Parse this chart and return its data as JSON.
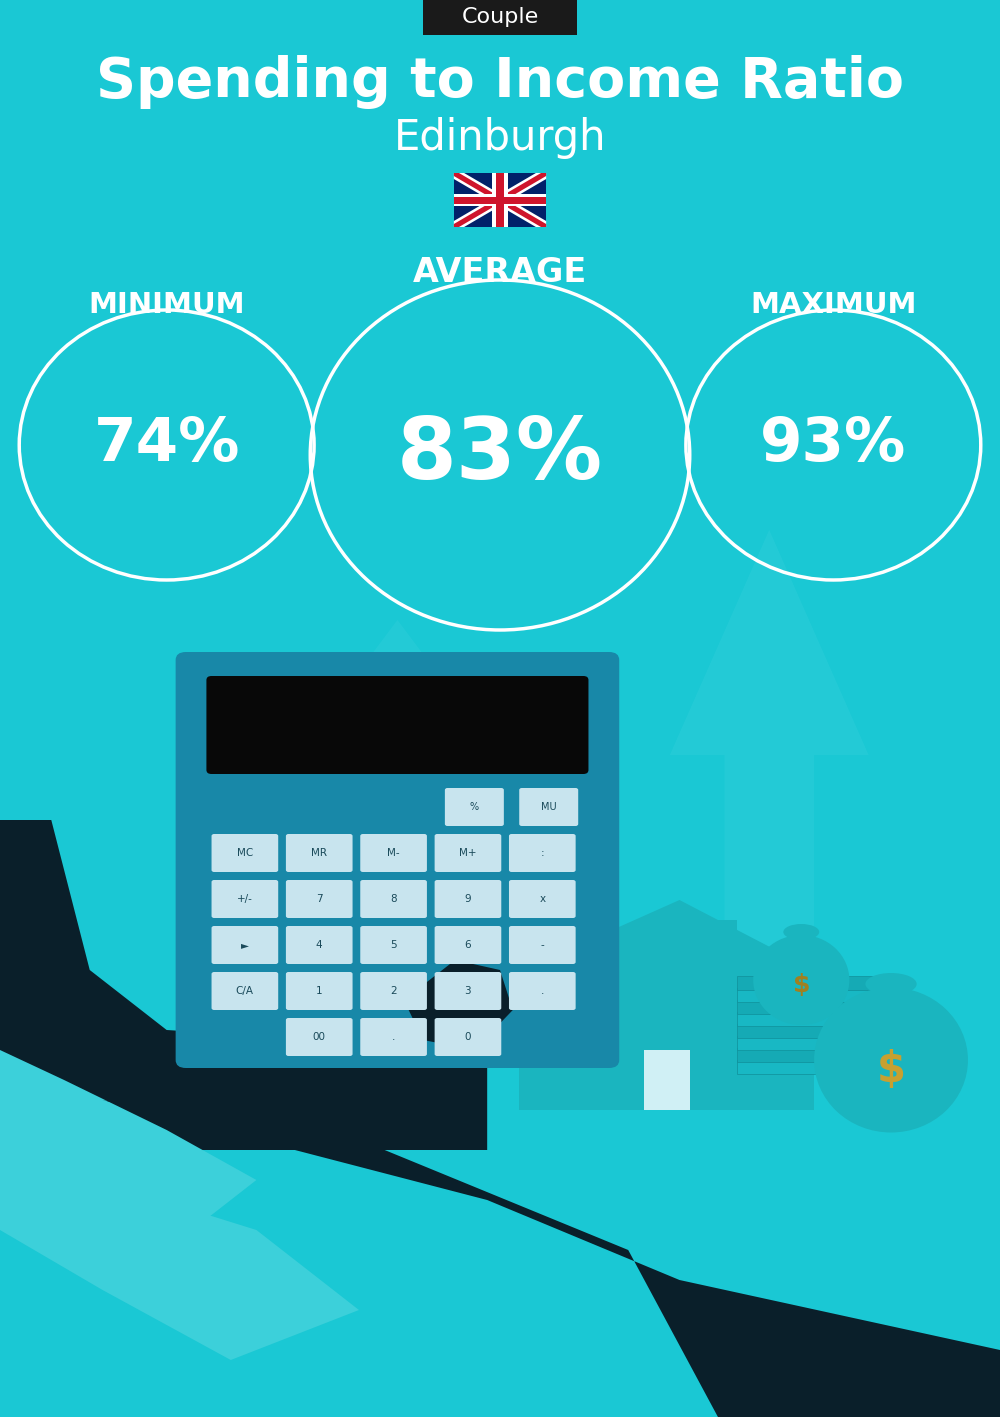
{
  "bg_color": "#1ac8d4",
  "title_tag": "Couple",
  "title_tag_bg": "#1a1a1a",
  "title_tag_color": "#ffffff",
  "title": "Spending to Income Ratio",
  "subtitle": "Edinburgh",
  "min_label": "MINIMUM",
  "avg_label": "AVERAGE",
  "max_label": "MAXIMUM",
  "min_value": "74%",
  "avg_value": "83%",
  "max_value": "93%",
  "text_color": "#ffffff",
  "circle_color": "#ffffff",
  "title_fontsize": 40,
  "subtitle_fontsize": 30,
  "label_fontsize": 21,
  "value_fontsize_small": 44,
  "value_fontsize_large": 62,
  "tag_fontsize": 16,
  "fig_width": 10.0,
  "fig_height": 14.17
}
